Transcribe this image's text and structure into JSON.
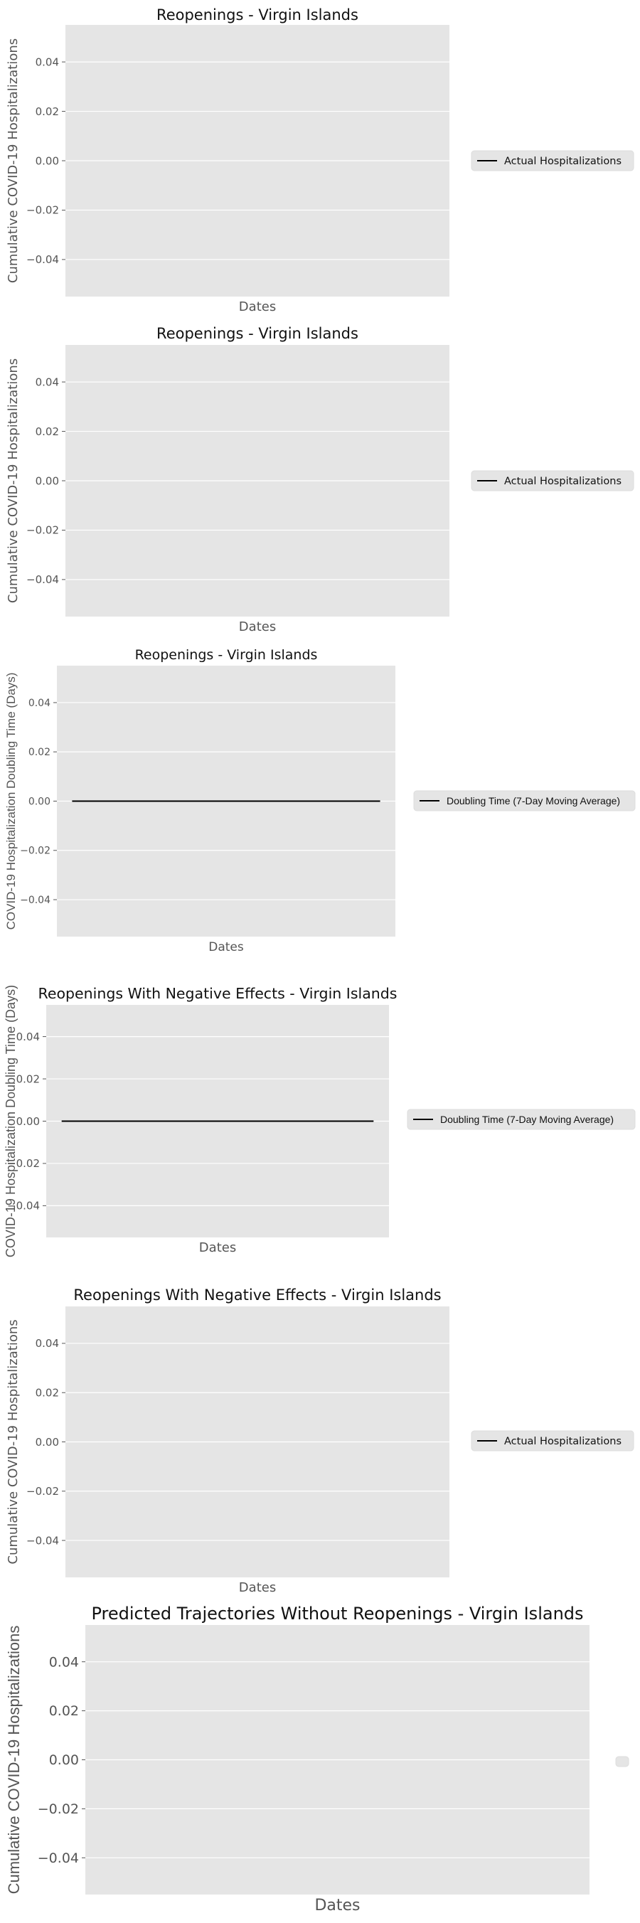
{
  "chart_data": [
    {
      "type": "line",
      "title": "Reopenings - Virgin Islands",
      "xlabel": "Dates",
      "ylabel": "Cumulative COVID-19 Hospitalizations",
      "ylim": [
        -0.055,
        0.055
      ],
      "yticks": [
        "0.04",
        "0.02",
        "0.00",
        "−0.02",
        "−0.04"
      ],
      "ytick_values": [
        0.04,
        0.02,
        0.0,
        -0.02,
        -0.04
      ],
      "grid": true,
      "legend_position": "right",
      "series": [
        {
          "name": "Actual Hospitalizations",
          "values": [],
          "color": "#000000"
        }
      ]
    },
    {
      "type": "line",
      "title": "Reopenings - Virgin Islands",
      "xlabel": "Dates",
      "ylabel": "Cumulative COVID-19 Hospitalizations",
      "ylim": [
        -0.055,
        0.055
      ],
      "yticks": [
        "0.04",
        "0.02",
        "0.00",
        "−0.02",
        "−0.04"
      ],
      "ytick_values": [
        0.04,
        0.02,
        0.0,
        -0.02,
        -0.04
      ],
      "grid": true,
      "legend_position": "right",
      "series": [
        {
          "name": "Actual Hospitalizations",
          "values": [],
          "color": "#000000"
        }
      ]
    },
    {
      "type": "line",
      "title": "Reopenings - Virgin Islands",
      "xlabel": "Dates",
      "ylabel": "COVID-19 Hospitalization Doubling Time (Days)",
      "ylim": [
        -0.055,
        0.055
      ],
      "yticks": [
        "0.04",
        "0.02",
        "0.00",
        "−0.02",
        "−0.04"
      ],
      "ytick_values": [
        0.04,
        0.02,
        0.0,
        -0.02,
        -0.04
      ],
      "grid": true,
      "legend_position": "right",
      "series": [
        {
          "name": "Doubling Time (7-Day Moving Average)",
          "values": [
            0,
            0
          ],
          "color": "#000000"
        }
      ]
    },
    {
      "type": "line",
      "title": "Reopenings With Negative Effects - Virgin Islands",
      "xlabel": "Dates",
      "ylabel": "COVID-19 Hospitalization Doubling Time (Days)",
      "ylim": [
        -0.055,
        0.055
      ],
      "yticks": [
        "0.04",
        "0.02",
        "0.00",
        "−0.02",
        "−0.04"
      ],
      "ytick_values": [
        0.04,
        0.02,
        0.0,
        -0.02,
        -0.04
      ],
      "grid": true,
      "legend_position": "right",
      "series": [
        {
          "name": "Doubling Time (7-Day Moving Average)",
          "values": [
            0,
            0
          ],
          "color": "#000000"
        }
      ]
    },
    {
      "type": "line",
      "title": "Reopenings With Negative Effects - Virgin Islands",
      "xlabel": "Dates",
      "ylabel": "Cumulative COVID-19 Hospitalizations",
      "ylim": [
        -0.055,
        0.055
      ],
      "yticks": [
        "0.04",
        "0.02",
        "0.00",
        "−0.02",
        "−0.04"
      ],
      "ytick_values": [
        0.04,
        0.02,
        0.0,
        -0.02,
        -0.04
      ],
      "grid": true,
      "legend_position": "right",
      "series": [
        {
          "name": "Actual Hospitalizations",
          "values": [],
          "color": "#000000"
        }
      ]
    },
    {
      "type": "line",
      "title": "Predicted Trajectories Without Reopenings - Virgin Islands",
      "xlabel": "Dates",
      "ylabel": "Cumulative COVID-19 Hospitalizations",
      "ylim": [
        -0.055,
        0.055
      ],
      "yticks": [
        "0.04",
        "0.02",
        "0.00",
        "−0.02",
        "−0.04"
      ],
      "ytick_values": [
        0.04,
        0.02,
        0.0,
        -0.02,
        -0.04
      ],
      "grid": true,
      "legend_position": "right",
      "series": []
    }
  ]
}
